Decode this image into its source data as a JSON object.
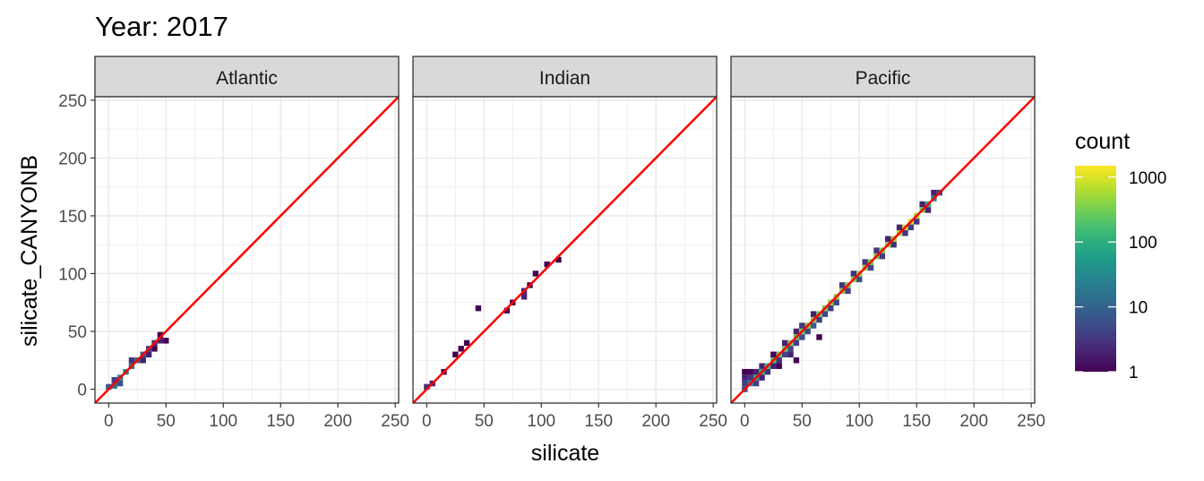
{
  "chart_data": {
    "type": "heatmap",
    "title": "Year: 2017",
    "xlabel": "silicate",
    "ylabel": "silicate_CANYONB",
    "xlim": [
      -12,
      253
    ],
    "ylim": [
      -12,
      253
    ],
    "x_ticks": [
      0,
      50,
      100,
      150,
      200,
      250
    ],
    "y_ticks": [
      0,
      50,
      100,
      150,
      200,
      250
    ],
    "grid": true,
    "reference_line": {
      "slope": 1,
      "intercept": 0,
      "color": "#ff0000"
    },
    "bin_width": 5,
    "legend": {
      "title": "count",
      "position": "right",
      "scale": "log10",
      "palette": "viridis",
      "range": [
        1,
        1500
      ],
      "ticks": [
        1,
        10,
        100,
        1000
      ],
      "tick_labels": [
        "1",
        "10",
        "100",
        "1000"
      ]
    },
    "facets": [
      {
        "label": "Atlantic",
        "cells": [
          [
            0,
            2,
            8
          ],
          [
            5,
            3,
            15
          ],
          [
            5,
            8,
            4
          ],
          [
            10,
            10,
            30
          ],
          [
            10,
            5,
            6
          ],
          [
            15,
            15,
            25
          ],
          [
            20,
            20,
            15
          ],
          [
            20,
            25,
            3
          ],
          [
            25,
            25,
            12
          ],
          [
            30,
            30,
            8
          ],
          [
            30,
            25,
            2
          ],
          [
            35,
            35,
            5
          ],
          [
            35,
            30,
            2
          ],
          [
            40,
            40,
            3
          ],
          [
            40,
            35,
            1
          ],
          [
            45,
            42,
            2
          ],
          [
            45,
            47,
            1
          ],
          [
            50,
            42,
            1
          ]
        ]
      },
      {
        "label": "Indian",
        "cells": [
          [
            0,
            2,
            3
          ],
          [
            5,
            5,
            2
          ],
          [
            15,
            15,
            1
          ],
          [
            25,
            30,
            1
          ],
          [
            30,
            35,
            1
          ],
          [
            35,
            40,
            1
          ],
          [
            45,
            70,
            1
          ],
          [
            70,
            68,
            1
          ],
          [
            75,
            75,
            1
          ],
          [
            85,
            80,
            2
          ],
          [
            85,
            85,
            2
          ],
          [
            90,
            90,
            1
          ],
          [
            95,
            100,
            1
          ],
          [
            105,
            108,
            1
          ],
          [
            115,
            112,
            1
          ]
        ]
      },
      {
        "label": "Pacific",
        "cells": [
          [
            0,
            0,
            5
          ],
          [
            0,
            5,
            4
          ],
          [
            0,
            10,
            2
          ],
          [
            0,
            15,
            1
          ],
          [
            5,
            5,
            30
          ],
          [
            5,
            10,
            3
          ],
          [
            5,
            15,
            1
          ],
          [
            10,
            10,
            60
          ],
          [
            10,
            5,
            4
          ],
          [
            10,
            15,
            2
          ],
          [
            15,
            15,
            100
          ],
          [
            15,
            10,
            2
          ],
          [
            15,
            20,
            2
          ],
          [
            20,
            20,
            150
          ],
          [
            20,
            15,
            3
          ],
          [
            25,
            25,
            200
          ],
          [
            25,
            20,
            2
          ],
          [
            25,
            30,
            1
          ],
          [
            30,
            30,
            250
          ],
          [
            30,
            25,
            3
          ],
          [
            30,
            20,
            1
          ],
          [
            35,
            35,
            300
          ],
          [
            35,
            30,
            5
          ],
          [
            35,
            40,
            2
          ],
          [
            40,
            40,
            300
          ],
          [
            40,
            35,
            5
          ],
          [
            40,
            30,
            2
          ],
          [
            45,
            45,
            250
          ],
          [
            45,
            40,
            4
          ],
          [
            45,
            50,
            2
          ],
          [
            45,
            25,
            1
          ],
          [
            50,
            50,
            300
          ],
          [
            50,
            45,
            6
          ],
          [
            50,
            55,
            3
          ],
          [
            55,
            55,
            350
          ],
          [
            55,
            50,
            5
          ],
          [
            60,
            60,
            400
          ],
          [
            60,
            55,
            8
          ],
          [
            60,
            65,
            2
          ],
          [
            65,
            65,
            300
          ],
          [
            65,
            60,
            4
          ],
          [
            65,
            45,
            1
          ],
          [
            70,
            70,
            350
          ],
          [
            70,
            65,
            5
          ],
          [
            75,
            75,
            400
          ],
          [
            75,
            70,
            4
          ],
          [
            80,
            80,
            450
          ],
          [
            80,
            75,
            5
          ],
          [
            85,
            85,
            400
          ],
          [
            85,
            90,
            3
          ],
          [
            90,
            90,
            350
          ],
          [
            90,
            85,
            4
          ],
          [
            95,
            95,
            400
          ],
          [
            95,
            100,
            3
          ],
          [
            100,
            100,
            450
          ],
          [
            100,
            95,
            6
          ],
          [
            105,
            105,
            400
          ],
          [
            105,
            110,
            3
          ],
          [
            110,
            110,
            350
          ],
          [
            110,
            105,
            5
          ],
          [
            115,
            115,
            300
          ],
          [
            115,
            120,
            3
          ],
          [
            120,
            120,
            350
          ],
          [
            120,
            115,
            4
          ],
          [
            125,
            125,
            400
          ],
          [
            125,
            130,
            2
          ],
          [
            130,
            130,
            500
          ],
          [
            130,
            125,
            3
          ],
          [
            135,
            135,
            600
          ],
          [
            135,
            140,
            2
          ],
          [
            140,
            140,
            800
          ],
          [
            140,
            135,
            3
          ],
          [
            145,
            145,
            1000
          ],
          [
            145,
            140,
            4
          ],
          [
            150,
            150,
            600
          ],
          [
            150,
            145,
            3
          ],
          [
            155,
            155,
            300
          ],
          [
            155,
            160,
            2
          ],
          [
            160,
            160,
            100
          ],
          [
            160,
            155,
            2
          ],
          [
            165,
            165,
            30
          ],
          [
            165,
            170,
            2
          ],
          [
            170,
            170,
            5
          ]
        ]
      }
    ]
  }
}
